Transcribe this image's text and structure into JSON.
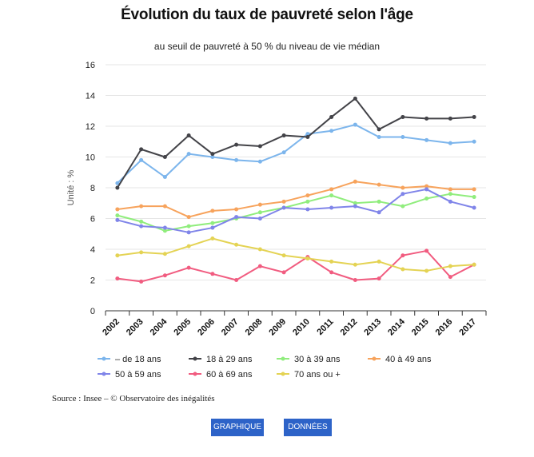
{
  "chart_data": {
    "type": "line",
    "title": "Évolution du taux de pauvreté selon l'âge",
    "subtitle": "au seuil de pauvreté à 50 % du niveau de vie médian",
    "ylabel": "Unité : %",
    "xlabel": "",
    "ylim": [
      0,
      16
    ],
    "yticks": [
      0,
      2,
      4,
      6,
      8,
      10,
      12,
      14,
      16
    ],
    "grid": "horizontal",
    "legend_position": "bottom",
    "categories": [
      "2002",
      "2003",
      "2004",
      "2005",
      "2006",
      "2007",
      "2008",
      "2009",
      "2010",
      "2011",
      "2012",
      "2013",
      "2014",
      "2015",
      "2016",
      "2017"
    ],
    "series": [
      {
        "name": "– de 18 ans",
        "color": "#7cb5ec",
        "values": [
          8.3,
          9.8,
          8.7,
          10.2,
          10.0,
          9.8,
          9.7,
          10.3,
          11.5,
          11.7,
          12.1,
          11.3,
          11.3,
          11.1,
          10.9,
          11.0
        ]
      },
      {
        "name": "18 à 29 ans",
        "color": "#434348",
        "values": [
          8.0,
          10.5,
          10.0,
          11.4,
          10.2,
          10.8,
          10.7,
          11.4,
          11.3,
          12.6,
          13.8,
          11.8,
          12.6,
          12.5,
          12.5,
          12.6
        ]
      },
      {
        "name": "30 à 39 ans",
        "color": "#90ed7d",
        "values": [
          6.2,
          5.8,
          5.2,
          5.5,
          5.7,
          6.0,
          6.4,
          6.7,
          7.1,
          7.5,
          7.0,
          7.1,
          6.8,
          7.3,
          7.6,
          7.4
        ]
      },
      {
        "name": "40 à 49 ans",
        "color": "#f7a35c",
        "values": [
          6.6,
          6.8,
          6.8,
          6.1,
          6.5,
          6.6,
          6.9,
          7.1,
          7.5,
          7.9,
          8.4,
          8.2,
          8.0,
          8.1,
          7.9,
          7.9
        ]
      },
      {
        "name": "50 à 59 ans",
        "color": "#8085e9",
        "values": [
          5.9,
          5.5,
          5.4,
          5.1,
          5.4,
          6.1,
          6.0,
          6.7,
          6.6,
          6.7,
          6.8,
          6.4,
          7.6,
          7.9,
          7.1,
          6.7
        ]
      },
      {
        "name": "60 à 69 ans",
        "color": "#f15c80",
        "values": [
          2.1,
          1.9,
          2.3,
          2.8,
          2.4,
          2.0,
          2.9,
          2.5,
          3.5,
          2.5,
          2.0,
          2.1,
          3.6,
          3.9,
          2.2,
          3.0
        ]
      },
      {
        "name": "70 ans ou +",
        "color": "#e4d354",
        "values": [
          3.6,
          3.8,
          3.7,
          4.2,
          4.7,
          4.3,
          4.0,
          3.6,
          3.4,
          3.2,
          3.0,
          3.2,
          2.7,
          2.6,
          2.9,
          3.0
        ]
      }
    ]
  },
  "footer": {
    "source": "Source : Insee – © Observatoire des inégalités"
  },
  "buttons": {
    "graph_label": "GRAPHIQUE",
    "data_label": "DONNÉES"
  }
}
